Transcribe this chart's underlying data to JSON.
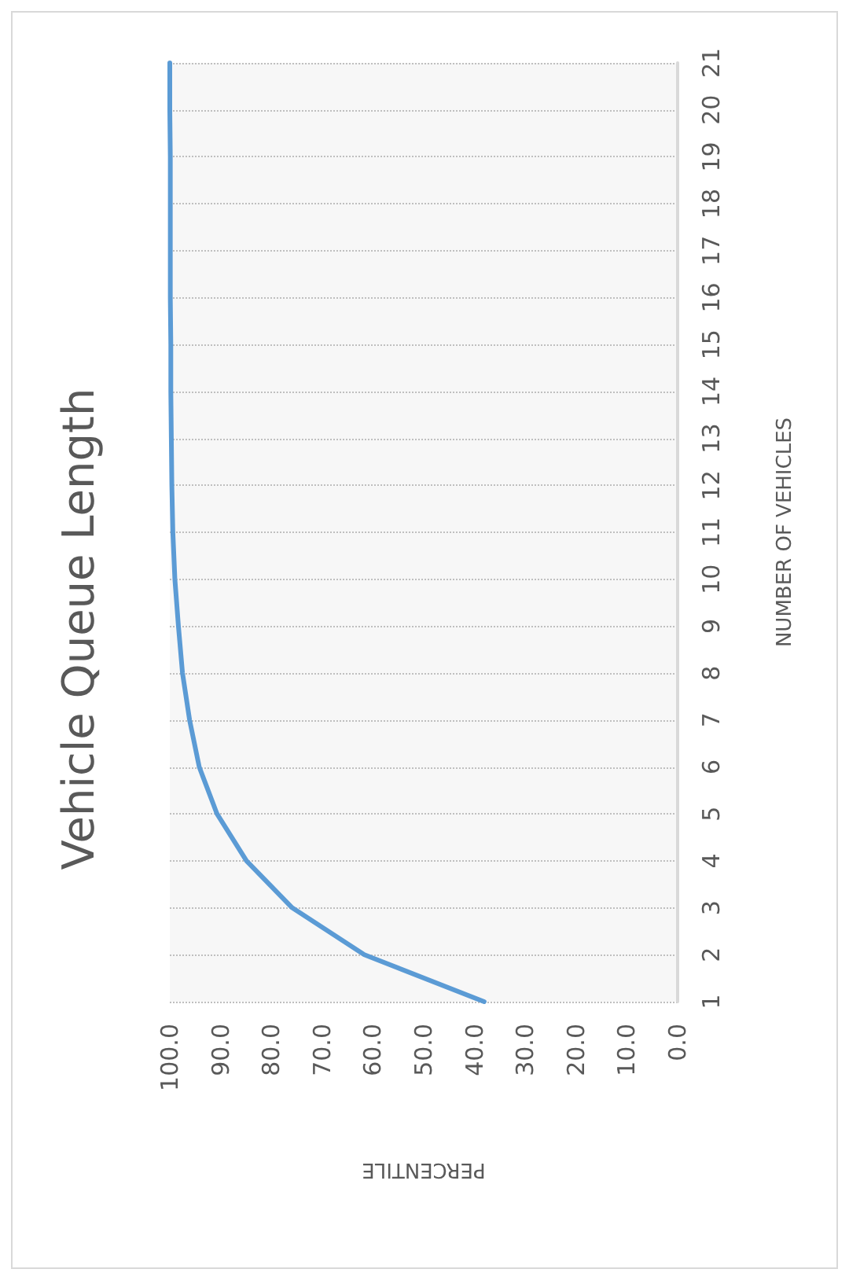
{
  "chart_data": {
    "type": "line",
    "title": "Vehicle Queue Length",
    "xlabel": "PERCENTILE",
    "ylabel": "NUMBER OF VEHICLES",
    "series": [
      {
        "color": "#5b9bd5",
        "x": [
          38.1,
          61.7,
          75.9,
          84.9,
          90.7,
          94.2,
          96.1,
          97.5,
          98.3,
          99.0,
          99.4,
          99.6,
          99.7,
          99.8,
          99.8,
          99.9,
          99.9,
          99.9,
          99.9,
          100.0,
          100.0
        ],
        "values": [
          1,
          2,
          3,
          4,
          5,
          6,
          7,
          8,
          9,
          10,
          11,
          12,
          13,
          14,
          15,
          16,
          17,
          18,
          19,
          20,
          21
        ]
      }
    ],
    "xlim": [
      100,
      0
    ],
    "xticks": [
      {
        "value": 100,
        "label": "100.0"
      },
      {
        "value": 90,
        "label": "90.0"
      },
      {
        "value": 80,
        "label": "80.0"
      },
      {
        "value": 70,
        "label": "70.0"
      },
      {
        "value": 60,
        "label": "60.0"
      },
      {
        "value": 50,
        "label": "50.0"
      },
      {
        "value": 40,
        "label": "40.0"
      },
      {
        "value": 30,
        "label": "30.0"
      },
      {
        "value": 20,
        "label": "20.0"
      },
      {
        "value": 10,
        "label": "10.0"
      },
      {
        "value": 0,
        "label": "0.0"
      }
    ],
    "ylim": [
      1,
      21
    ],
    "yticks": [
      1,
      2,
      3,
      4,
      5,
      6,
      7,
      8,
      9,
      10,
      11,
      12,
      13,
      14,
      15,
      16,
      17,
      18,
      19,
      20,
      21
    ],
    "grid": "y",
    "marker": "none",
    "line_style": "solid"
  }
}
